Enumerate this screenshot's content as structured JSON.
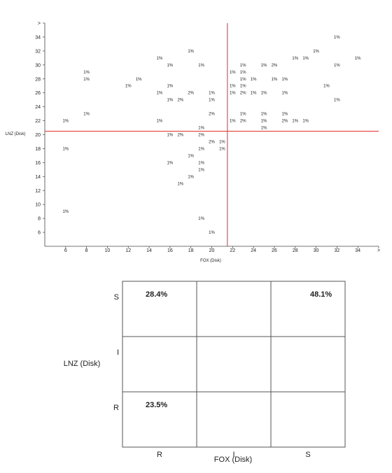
{
  "chart_data": [
    {
      "type": "scatter",
      "xlabel": "FOX (Disk)",
      "ylabel": "LNZ (Disk)",
      "xlim": [
        4,
        36
      ],
      "ylim": [
        4,
        36
      ],
      "x_ticks": [
        "6",
        "8",
        "10",
        "12",
        "14",
        "16",
        "18",
        "20",
        "22",
        "24",
        "26",
        "28",
        "30",
        "32",
        "34",
        ">"
      ],
      "y_ticks": [
        "6",
        "8",
        "10",
        "12",
        "14",
        "16",
        "18",
        "20",
        "22",
        "24",
        "26",
        "28",
        "30",
        "32",
        "34",
        ">"
      ],
      "breakpoints": {
        "x": 21.5,
        "y": 20.5
      },
      "points": [
        {
          "x": 32,
          "y": 34,
          "label": "1%"
        },
        {
          "x": 18,
          "y": 32,
          "label": "1%"
        },
        {
          "x": 30,
          "y": 32,
          "label": "1%"
        },
        {
          "x": 15,
          "y": 31,
          "label": "1%"
        },
        {
          "x": 28,
          "y": 31,
          "label": "1%"
        },
        {
          "x": 29,
          "y": 31,
          "label": "1%"
        },
        {
          "x": 34,
          "y": 31,
          "label": "1%"
        },
        {
          "x": 16,
          "y": 30,
          "label": "1%"
        },
        {
          "x": 19,
          "y": 30,
          "label": "1%"
        },
        {
          "x": 23,
          "y": 30,
          "label": "1%"
        },
        {
          "x": 25,
          "y": 30,
          "label": "1%"
        },
        {
          "x": 26,
          "y": 30,
          "label": "2%"
        },
        {
          "x": 32,
          "y": 30,
          "label": "1%"
        },
        {
          "x": 8,
          "y": 29,
          "label": "1%"
        },
        {
          "x": 22,
          "y": 29,
          "label": "1%"
        },
        {
          "x": 23,
          "y": 29,
          "label": "1%"
        },
        {
          "x": 8,
          "y": 28,
          "label": "1%"
        },
        {
          "x": 13,
          "y": 28,
          "label": "1%"
        },
        {
          "x": 23,
          "y": 28,
          "label": "1%"
        },
        {
          "x": 24,
          "y": 28,
          "label": "1%"
        },
        {
          "x": 26,
          "y": 28,
          "label": "1%"
        },
        {
          "x": 27,
          "y": 28,
          "label": "1%"
        },
        {
          "x": 12,
          "y": 27,
          "label": "1%"
        },
        {
          "x": 16,
          "y": 27,
          "label": "1%"
        },
        {
          "x": 22,
          "y": 27,
          "label": "1%"
        },
        {
          "x": 23,
          "y": 27,
          "label": "1%"
        },
        {
          "x": 31,
          "y": 27,
          "label": "1%"
        },
        {
          "x": 15,
          "y": 26,
          "label": "1%"
        },
        {
          "x": 18,
          "y": 26,
          "label": "2%"
        },
        {
          "x": 20,
          "y": 26,
          "label": "1%"
        },
        {
          "x": 22,
          "y": 26,
          "label": "1%"
        },
        {
          "x": 23,
          "y": 26,
          "label": "2%"
        },
        {
          "x": 24,
          "y": 26,
          "label": "1%"
        },
        {
          "x": 25,
          "y": 26,
          "label": "1%"
        },
        {
          "x": 27,
          "y": 26,
          "label": "1%"
        },
        {
          "x": 16,
          "y": 25,
          "label": "1%"
        },
        {
          "x": 17,
          "y": 25,
          "label": "2%"
        },
        {
          "x": 20,
          "y": 25,
          "label": "1%"
        },
        {
          "x": 32,
          "y": 25,
          "label": "1%"
        },
        {
          "x": 8,
          "y": 23,
          "label": "1%"
        },
        {
          "x": 20,
          "y": 23,
          "label": "2%"
        },
        {
          "x": 23,
          "y": 23,
          "label": "1%"
        },
        {
          "x": 25,
          "y": 23,
          "label": "1%"
        },
        {
          "x": 27,
          "y": 23,
          "label": "1%"
        },
        {
          "x": 6,
          "y": 22,
          "label": "1%"
        },
        {
          "x": 15,
          "y": 22,
          "label": "1%"
        },
        {
          "x": 22,
          "y": 22,
          "label": "1%"
        },
        {
          "x": 23,
          "y": 22,
          "label": "2%"
        },
        {
          "x": 25,
          "y": 22,
          "label": "1%"
        },
        {
          "x": 27,
          "y": 22,
          "label": "2%"
        },
        {
          "x": 28,
          "y": 22,
          "label": "1%"
        },
        {
          "x": 29,
          "y": 22,
          "label": "1%"
        },
        {
          "x": 19,
          "y": 21,
          "label": "1%"
        },
        {
          "x": 25,
          "y": 21,
          "label": "1%"
        },
        {
          "x": 16,
          "y": 20,
          "label": "1%"
        },
        {
          "x": 17,
          "y": 20,
          "label": "2%"
        },
        {
          "x": 19,
          "y": 20,
          "label": "2%"
        },
        {
          "x": 20,
          "y": 19,
          "label": "2%"
        },
        {
          "x": 21,
          "y": 19,
          "label": "1%"
        },
        {
          "x": 6,
          "y": 18,
          "label": "1%"
        },
        {
          "x": 19,
          "y": 18,
          "label": "1%"
        },
        {
          "x": 21,
          "y": 18,
          "label": "1%"
        },
        {
          "x": 18,
          "y": 17,
          "label": "1%"
        },
        {
          "x": 16,
          "y": 16,
          "label": "1%"
        },
        {
          "x": 19,
          "y": 16,
          "label": "1%"
        },
        {
          "x": 19,
          "y": 15,
          "label": "1%"
        },
        {
          "x": 18,
          "y": 14,
          "label": "1%"
        },
        {
          "x": 17,
          "y": 13,
          "label": "1%"
        },
        {
          "x": 6,
          "y": 9,
          "label": "1%"
        },
        {
          "x": 19,
          "y": 8,
          "label": "1%"
        },
        {
          "x": 20,
          "y": 6,
          "label": "1%"
        }
      ]
    },
    {
      "type": "table",
      "xlabel": "FOX (Disk)",
      "ylabel": "LNZ (Disk)",
      "columns": [
        "R",
        "I",
        "S"
      ],
      "rows": [
        "S",
        "I",
        "R"
      ],
      "cells": [
        [
          "28.4%",
          "",
          "48.1%"
        ],
        [
          "",
          "",
          ""
        ],
        [
          "23.5%",
          "",
          ""
        ]
      ]
    }
  ]
}
